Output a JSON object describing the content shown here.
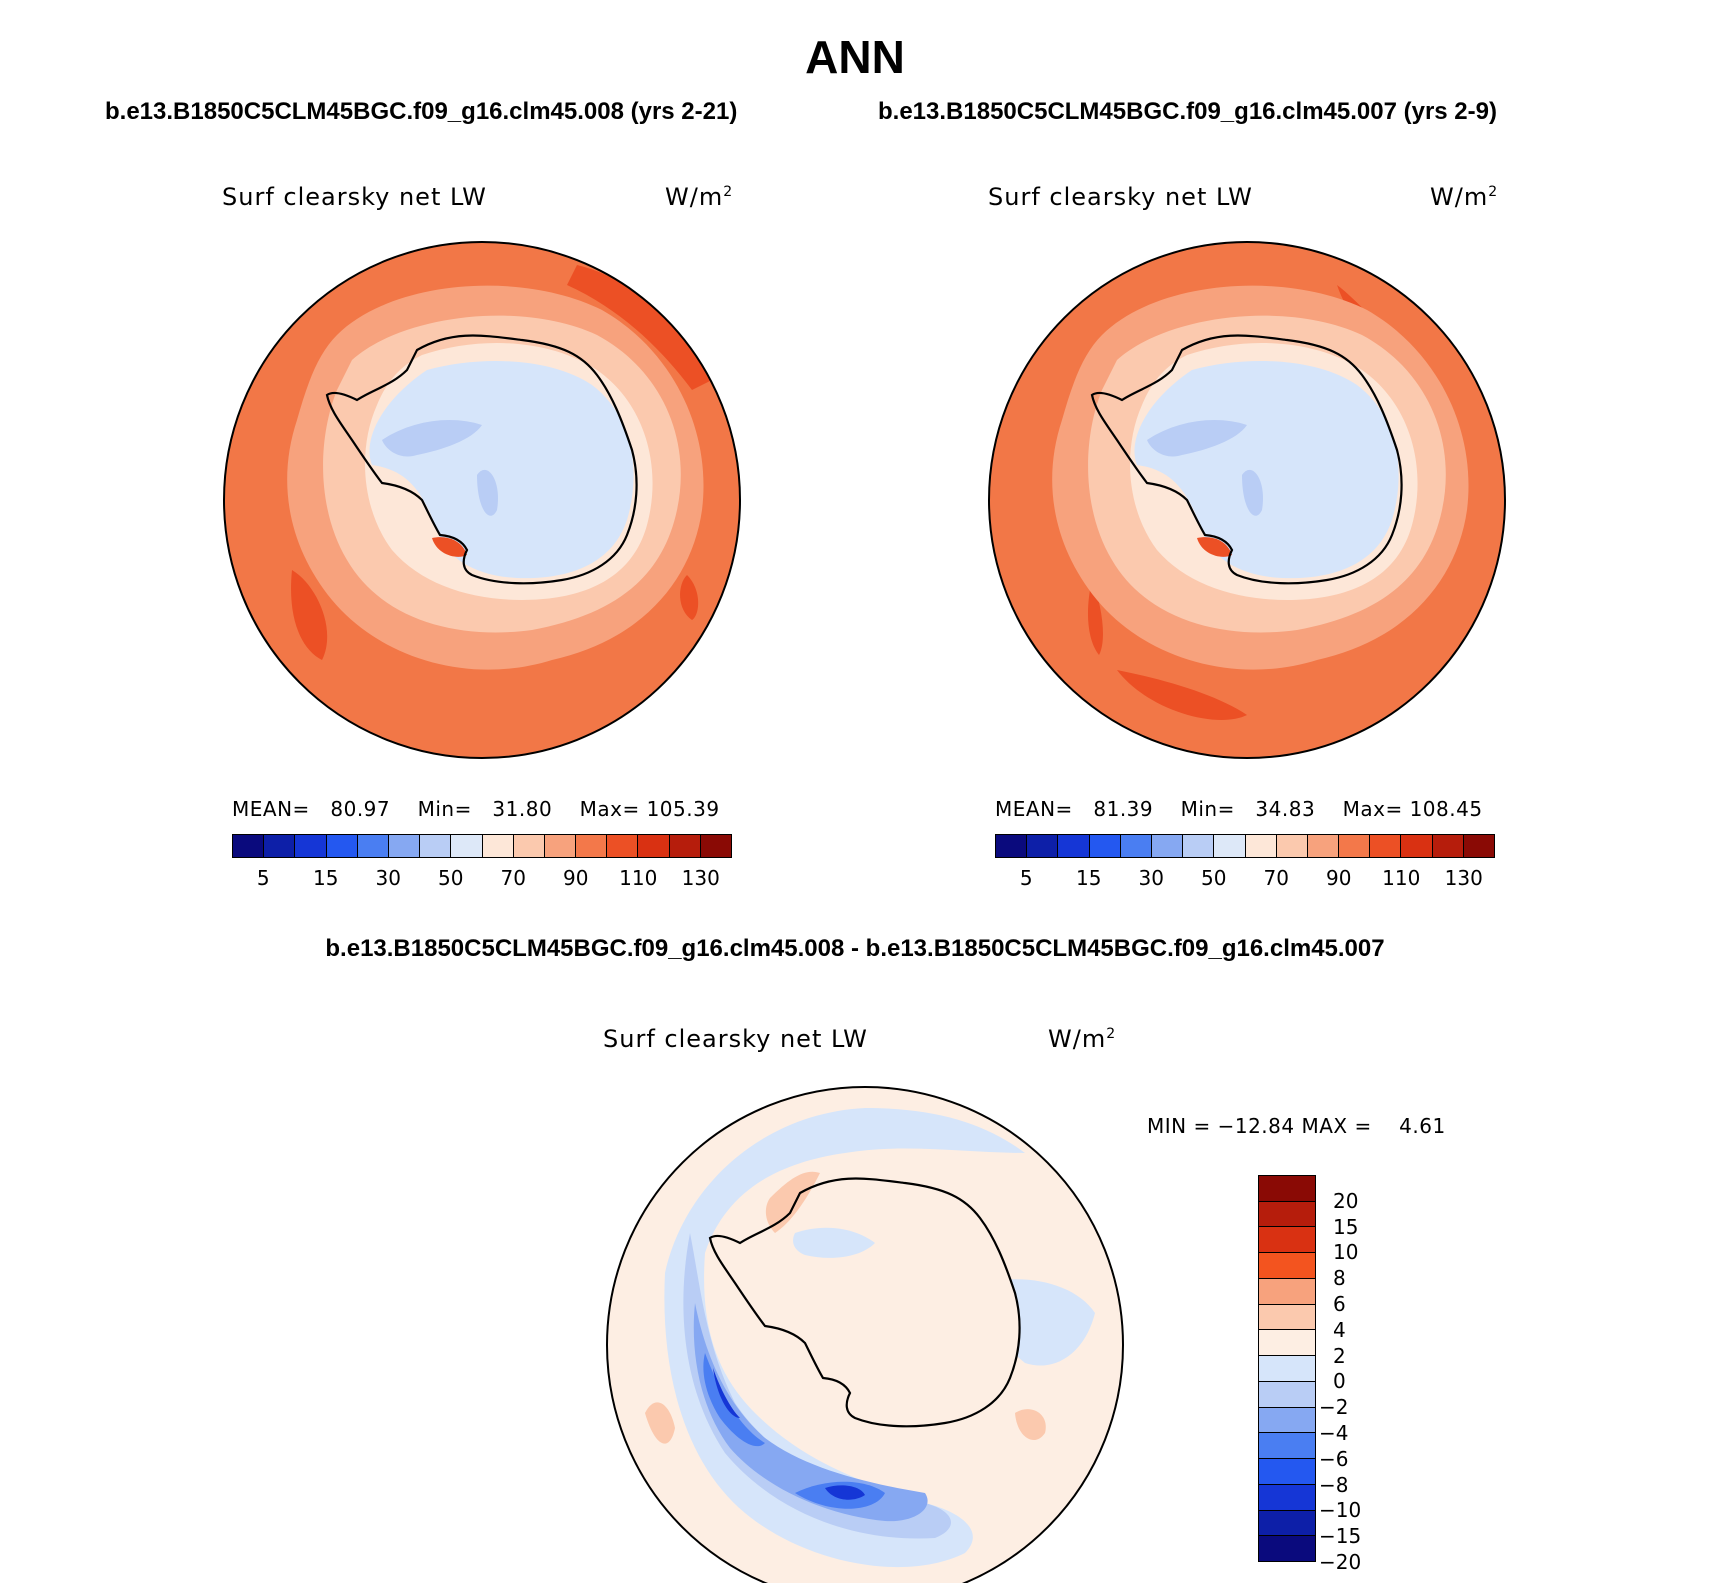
{
  "title": "ANN",
  "left_case": "b.e13.B1850C5CLM45BGC.f09_g16.clm45.008 (yrs 2-21)",
  "right_case": "b.e13.B1850C5CLM45BGC.f09_g16.clm45.007 (yrs 2-9)",
  "diff_title": "b.e13.B1850C5CLM45BGC.f09_g16.clm45.008 - b.e13.B1850C5CLM45BGC.f09_g16.clm45.007",
  "variable": "Surf clearsky net LW",
  "units_base": "W/m",
  "units_exp": "2",
  "panel_left": {
    "mean_label": "MEAN=",
    "mean": "80.97",
    "min_label": "Min=",
    "min": "31.80",
    "max_label": "Max=",
    "max": "105.39"
  },
  "panel_right": {
    "mean_label": "MEAN=",
    "mean": "81.39",
    "min_label": "Min=",
    "min": "34.83",
    "max_label": "Max=",
    "max": "108.45"
  },
  "panel_diff": {
    "min_label": "MIN =",
    "min": "−12.84",
    "max_label": "MAX =",
    "max": "4.61"
  },
  "abs_colorbar": {
    "colors": [
      "#0a0a7d",
      "#0d1fa8",
      "#1536d6",
      "#2458f0",
      "#4a7ef2",
      "#86a8f2",
      "#b9cdf5",
      "#dde8f8",
      "#fde7d8",
      "#fbc9ae",
      "#f7a27d",
      "#f3784a",
      "#ec5025",
      "#d93112",
      "#b61d0c",
      "#8a0a05"
    ],
    "ticks": [
      "5",
      "15",
      "30",
      "50",
      "70",
      "90",
      "110",
      "130"
    ]
  },
  "diff_colorbar": {
    "colors": [
      "#8a0a05",
      "#b61d0c",
      "#d93112",
      "#f3541f",
      "#f7a27d",
      "#fbc9ae",
      "#fdeee3",
      "#d6e5fa",
      "#b9cdf5",
      "#86a8f2",
      "#4a7ef2",
      "#2458f0",
      "#1536d6",
      "#0d1fa8",
      "#0a0a7d"
    ],
    "ticks": [
      "20",
      "15",
      "10",
      "8",
      "6",
      "4",
      "2",
      "0",
      "−2",
      "−4",
      "−6",
      "−8",
      "−10",
      "−15",
      "−20"
    ]
  },
  "map_colors": {
    "ocean_outer": "#f27747",
    "ocean_mid": "#f7a27d",
    "ocean_inner": "#fbc9ae",
    "coast_band": "#fde7d8",
    "interior": "#d6e5fa",
    "interior_low": "#b9cdf5",
    "hot_spot": "#ec5025",
    "diff_bg": "#fdeee3",
    "diff_blue": "#d6e5fa",
    "diff_blue2": "#b9cdf5",
    "diff_blue3": "#86a8f2",
    "diff_blue4": "#4a7ef2",
    "diff_blue5": "#1536d6",
    "diff_red": "#fbc9ae"
  }
}
